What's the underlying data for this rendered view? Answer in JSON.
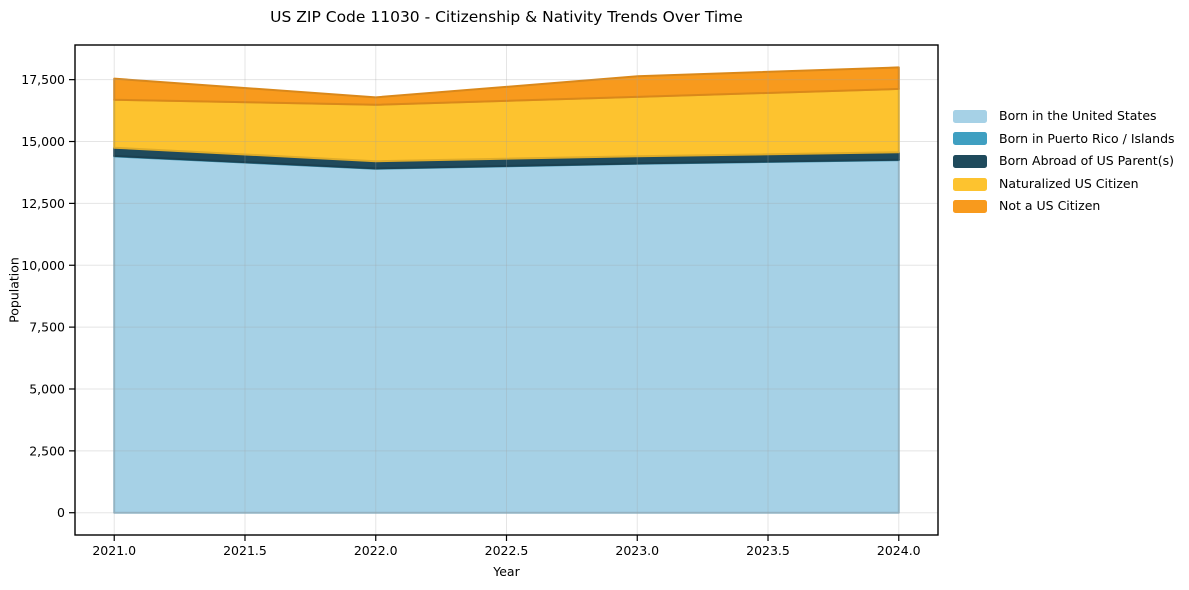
{
  "chart_data": {
    "type": "area",
    "stacked": true,
    "title": "US ZIP Code 11030 - Citizenship & Nativity Trends Over Time",
    "xlabel": "Year",
    "ylabel": "Population",
    "x": [
      2021,
      2022,
      2023,
      2024
    ],
    "series": [
      {
        "name": "Born in the United States",
        "color": "#a6d1e6",
        "values": [
          14400,
          13900,
          14100,
          14250
        ]
      },
      {
        "name": "Born in Puerto Rico / Islands",
        "color": "#3f9fc1",
        "values": [
          20,
          15,
          15,
          15
        ]
      },
      {
        "name": "Born Abroad of US Parent(s)",
        "color": "#1f4a5c",
        "values": [
          330,
          290,
          290,
          300
        ]
      },
      {
        "name": "Naturalized US Citizen",
        "color": "#fdc32f",
        "values": [
          1940,
          2280,
          2400,
          2560
        ]
      },
      {
        "name": "Not a US Citizen",
        "color": "#f89a1d",
        "values": [
          850,
          300,
          830,
          870
        ]
      }
    ],
    "totals": [
      17540,
      16785,
      17635,
      17995
    ],
    "xticks": [
      2021.0,
      2021.5,
      2022.0,
      2022.5,
      2023.0,
      2023.5,
      2024.0
    ],
    "xtick_labels": [
      "2021.0",
      "2021.5",
      "2022.0",
      "2022.5",
      "2023.0",
      "2023.5",
      "2024.0"
    ],
    "yticks": [
      0,
      2500,
      5000,
      7500,
      10000,
      12500,
      15000,
      17500
    ],
    "ytick_labels": [
      "0",
      "2,500",
      "5,000",
      "7,500",
      "10,000",
      "12,500",
      "15,000",
      "17,500"
    ],
    "xlim": [
      2020.85,
      2024.15
    ],
    "ylim": [
      -900,
      18900
    ],
    "grid": true,
    "legend_position": "right-outside",
    "colors": {
      "background": "#ffffff",
      "spine": "#000000",
      "gridline": "#dedede",
      "text": "#000000"
    }
  }
}
